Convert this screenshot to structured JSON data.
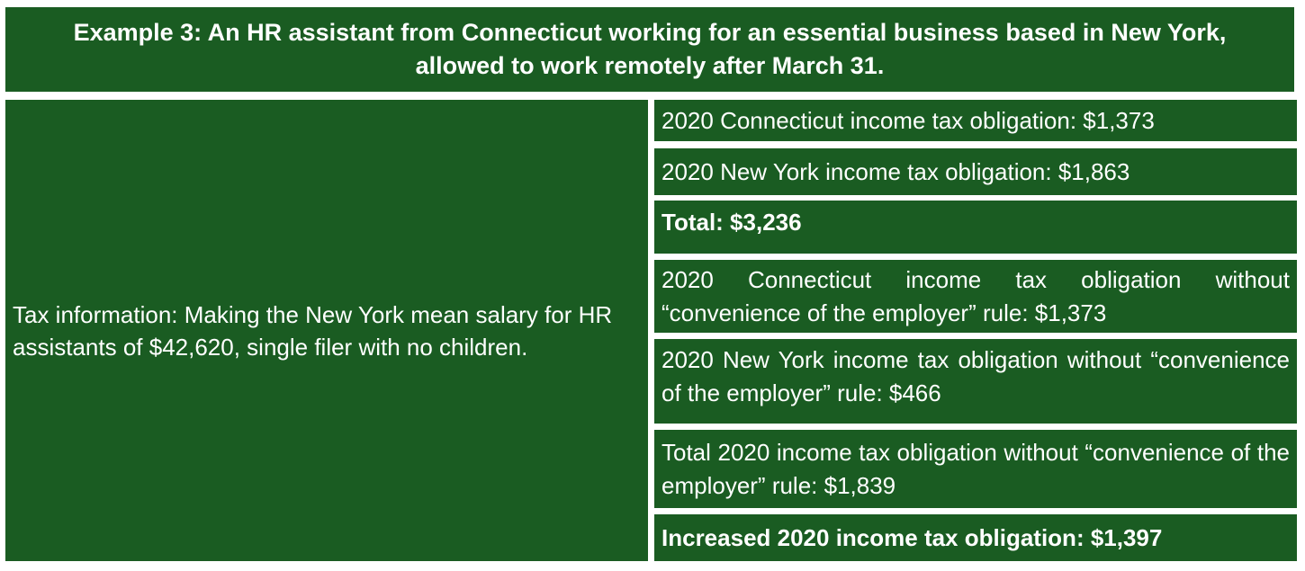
{
  "title": "Example 3: An HR assistant from Connecticut working for an essential business based in New York, allowed to work remotely after March 31.",
  "tax_info": "Tax information: Making the New York mean salary for HR assistants of $42,620, single filer with no children.",
  "rows": [
    {
      "text": "2020 Connecticut income tax obligation: $1,373",
      "bold": false
    },
    {
      "text": "2020 New York income tax obligation: $1,863",
      "bold": false
    },
    {
      "text": "Total: $3,236",
      "bold": true
    },
    {
      "text": "2020 Connecticut income tax obligation without “convenience of the employer” rule: $1,373",
      "bold": false
    },
    {
      "text": "2020 New York income tax obligation without “convenience of the employer” rule: $466",
      "bold": false
    },
    {
      "text": "Total 2020 income tax obligation without “convenience of the employer” rule: $1,839",
      "bold": false
    },
    {
      "text": "Increased 2020 income tax obligation: $1,397",
      "bold": true
    }
  ],
  "colors": {
    "background": "#1a5c22",
    "text": "#ffffff",
    "separator": "#ffffff"
  }
}
